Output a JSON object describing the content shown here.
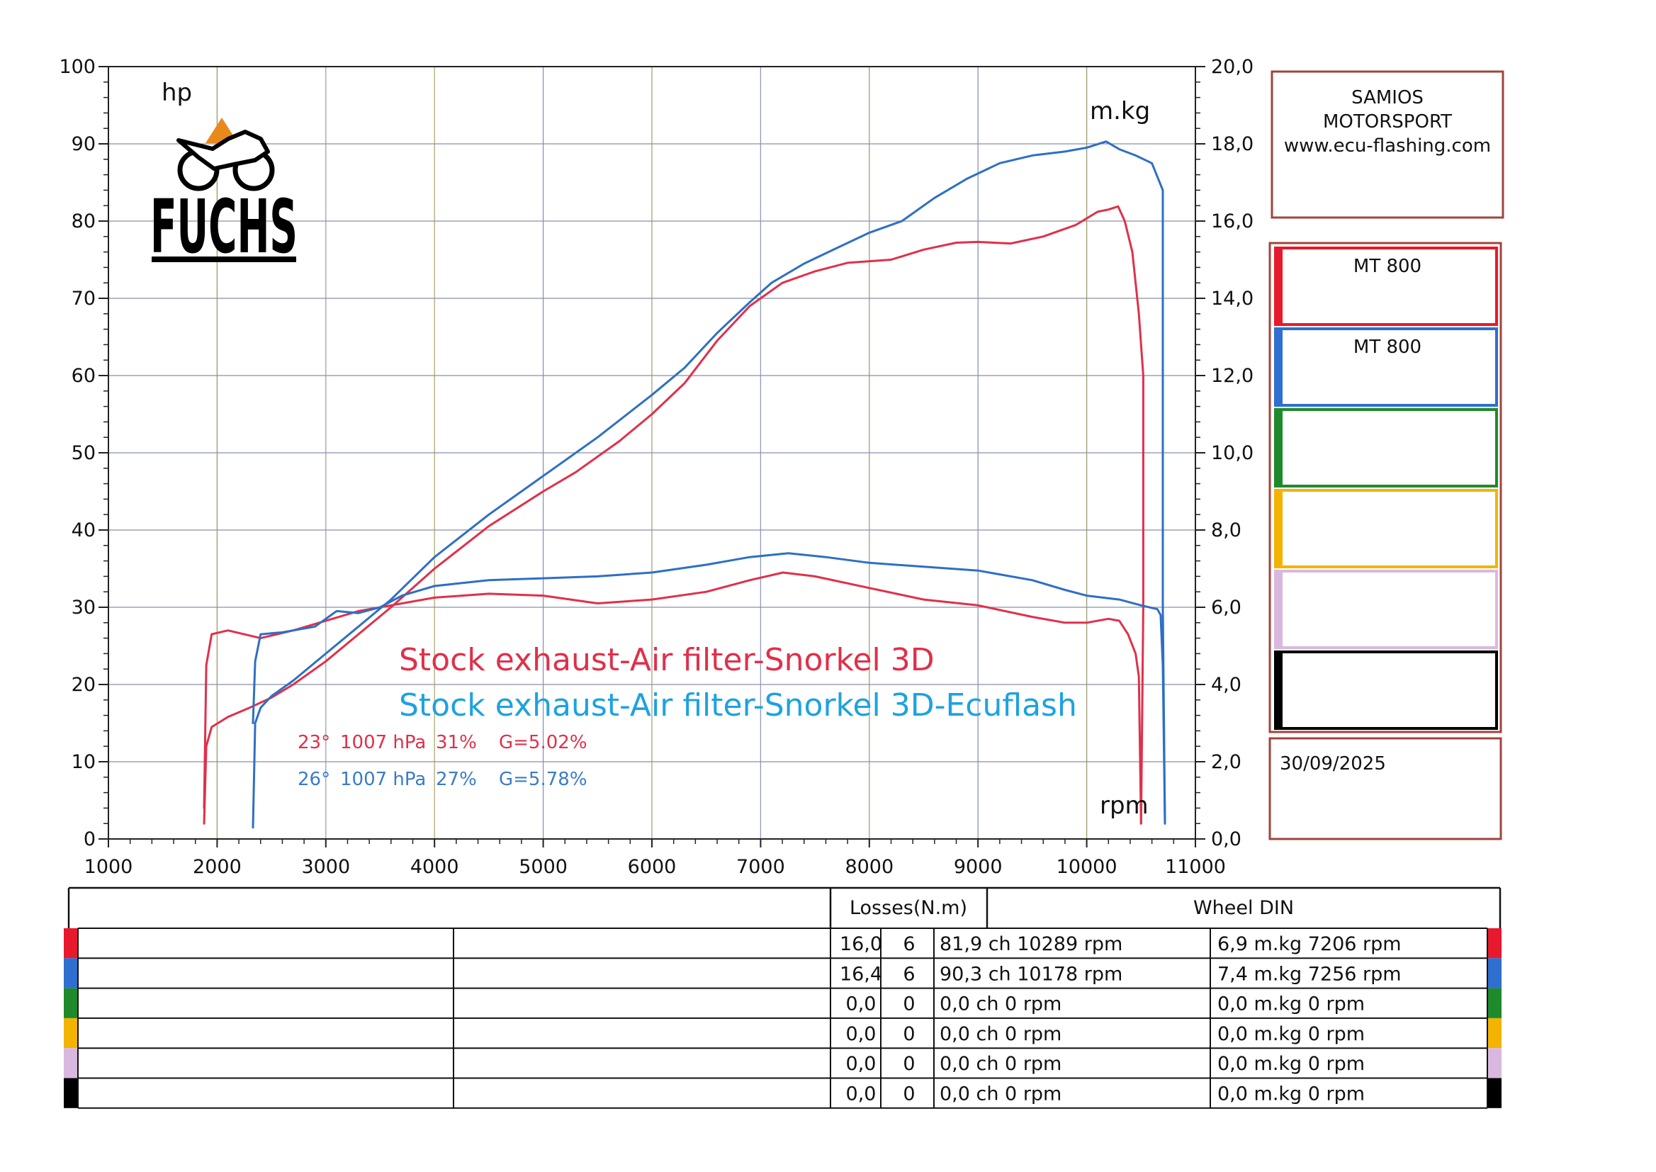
{
  "chart_data": {
    "type": "line",
    "xlabel": "rpm",
    "ylabel_left": "hp",
    "ylabel_right": "m.kg",
    "xlim": [
      1000,
      11000
    ],
    "ylim_left": [
      0,
      100
    ],
    "ylim_right": [
      0,
      20
    ],
    "x_ticks": [
      "1000",
      "2000",
      "3000",
      "4000",
      "5000",
      "6000",
      "7000",
      "8000",
      "9000",
      "10000",
      "11000"
    ],
    "y_left_ticks": [
      "0",
      "10",
      "20",
      "30",
      "40",
      "50",
      "60",
      "70",
      "80",
      "90",
      "100"
    ],
    "y_right_ticks": [
      "0,0",
      "2,0",
      "4,0",
      "6,0",
      "8,0",
      "10,0",
      "12,0",
      "14,0",
      "16,0",
      "18,0",
      "20,0"
    ],
    "grid": true,
    "series": [
      {
        "kind": "power",
        "axis": "left",
        "color": "#e0304a",
        "x": [
          1880,
          1900,
          1950,
          2100,
          2300,
          2500,
          2700,
          3000,
          3300,
          3600,
          4000,
          4500,
          5000,
          5300,
          5700,
          6000,
          6300,
          6600,
          6900,
          7200,
          7500,
          7800,
          8200,
          8500,
          8800,
          9000,
          9300,
          9600,
          9900,
          10100,
          10200,
          10289,
          10350,
          10420,
          10480,
          10520,
          10520,
          10500
        ],
        "y": [
          2,
          12,
          14.5,
          15.8,
          17,
          18.3,
          20,
          23,
          26.5,
          30,
          35,
          40.5,
          45,
          47.5,
          51.5,
          55,
          59,
          64.5,
          69,
          72,
          73.5,
          74.6,
          75,
          76.3,
          77.2,
          77.3,
          77.1,
          78,
          79.5,
          81.2,
          81.5,
          81.9,
          80,
          76,
          68,
          60,
          30,
          2
        ]
      },
      {
        "kind": "power",
        "axis": "left",
        "color": "#2e6fc4",
        "x": [
          2330,
          2350,
          2400,
          2500,
          2700,
          3000,
          3300,
          3600,
          4000,
          4500,
          5000,
          5500,
          6000,
          6300,
          6600,
          6900,
          7100,
          7400,
          7700,
          8000,
          8300,
          8600,
          8900,
          9200,
          9500,
          9800,
          10000,
          10178,
          10300,
          10450,
          10600,
          10700,
          10700,
          10720
        ],
        "y": [
          1.5,
          15,
          17,
          18.5,
          20.5,
          24,
          27.5,
          31,
          36.5,
          42,
          47,
          52,
          57.5,
          61,
          65.5,
          69.5,
          72,
          74.5,
          76.5,
          78.5,
          80,
          83,
          85.5,
          87.5,
          88.5,
          89,
          89.5,
          90.3,
          89.3,
          88.5,
          87.5,
          84,
          30,
          2
        ]
      },
      {
        "kind": "torque",
        "axis": "right",
        "color": "#e0304a",
        "x": [
          1880,
          1900,
          1950,
          2100,
          2400,
          2700,
          3000,
          3300,
          3600,
          4000,
          4500,
          5000,
          5500,
          6000,
          6500,
          6900,
          7206,
          7500,
          8000,
          8500,
          9000,
          9500,
          9800,
          10000,
          10200,
          10300,
          10380,
          10450,
          10480,
          10500
        ],
        "y": [
          0.8,
          4.5,
          5.3,
          5.4,
          5.2,
          5.4,
          5.65,
          5.9,
          6.05,
          6.25,
          6.35,
          6.3,
          6.1,
          6.2,
          6.4,
          6.7,
          6.9,
          6.8,
          6.5,
          6.2,
          6.05,
          5.75,
          5.6,
          5.6,
          5.7,
          5.65,
          5.3,
          4.8,
          4.2,
          0.4
        ]
      },
      {
        "kind": "torque",
        "axis": "right",
        "color": "#2e6fc4",
        "x": [
          2330,
          2350,
          2400,
          2600,
          2900,
          3100,
          3300,
          3500,
          3700,
          4000,
          4500,
          5000,
          5500,
          6000,
          6500,
          6900,
          7256,
          7600,
          8000,
          8500,
          9000,
          9500,
          9800,
          10000,
          10300,
          10500,
          10650,
          10680,
          10700,
          10720
        ],
        "y": [
          3,
          4.6,
          5.3,
          5.35,
          5.5,
          5.9,
          5.85,
          6.0,
          6.3,
          6.55,
          6.7,
          6.75,
          6.8,
          6.9,
          7.1,
          7.3,
          7.4,
          7.3,
          7.15,
          7.05,
          6.95,
          6.7,
          6.45,
          6.3,
          6.2,
          6.05,
          5.95,
          5.8,
          4.5,
          0.4
        ]
      }
    ]
  },
  "annotations": {
    "line1": "Stock exhaust-Air filter-Snorkel 3D",
    "line2": "Stock exhaust-Air filter-Snorkel 3D-Ecuflash",
    "cond1": [
      "23°",
      "1007 hPa",
      "31%",
      "G=5.02%"
    ],
    "cond2": [
      "26°",
      "1007 hPa",
      "27%",
      "G=5.78%"
    ]
  },
  "logo": {
    "text": "FUCHS",
    "icon": "motorcycle-logo-icon"
  },
  "side_panel": {
    "company": [
      "SAMIOS",
      "MOTORSPORT",
      "www.ecu-flashing.com"
    ],
    "slots": [
      {
        "color": "#e8192c",
        "label": "MT 800"
      },
      {
        "color": "#2e6fd0",
        "label": "MT 800"
      },
      {
        "color": "#1e8a2c",
        "label": ""
      },
      {
        "color": "#f2b400",
        "label": ""
      },
      {
        "color": "#d9b8e0",
        "label": ""
      },
      {
        "color": "#000000",
        "label": ""
      }
    ],
    "date": "30/09/2025"
  },
  "table": {
    "losses_header": "Losses(N.m)",
    "wheel_header": "Wheel DIN",
    "rows": [
      {
        "color": "#e8192c",
        "loss1": "16,0",
        "loss2": "6",
        "power": "81,9 ch 10289 rpm",
        "torque": "6,9 m.kg 7206 rpm"
      },
      {
        "color": "#2e6fd0",
        "loss1": "16,4",
        "loss2": "6",
        "power": "90,3 ch 10178 rpm",
        "torque": "7,4 m.kg 7256 rpm"
      },
      {
        "color": "#1e8a2c",
        "loss1": "0,0",
        "loss2": "0",
        "power": "0,0 ch 0 rpm",
        "torque": "0,0 m.kg 0 rpm"
      },
      {
        "color": "#f2b400",
        "loss1": "0,0",
        "loss2": "0",
        "power": "0,0 ch 0 rpm",
        "torque": "0,0 m.kg 0 rpm"
      },
      {
        "color": "#d9b8e0",
        "loss1": "0,0",
        "loss2": "0",
        "power": "0,0 ch 0 rpm",
        "torque": "0,0 m.kg 0 rpm"
      },
      {
        "color": "#000000",
        "loss1": "0,0",
        "loss2": "0",
        "power": "0,0 ch 0 rpm",
        "torque": "0,0 m.kg 0 rpm"
      }
    ]
  }
}
